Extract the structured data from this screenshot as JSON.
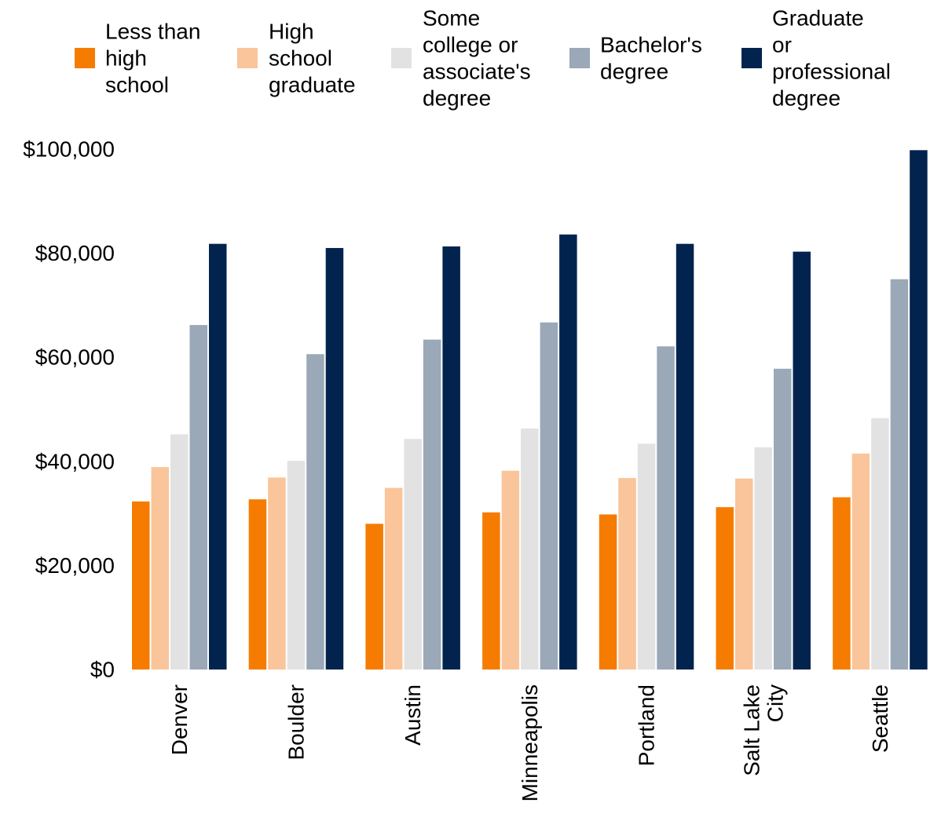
{
  "chart_data": {
    "type": "bar",
    "categories": [
      "Denver",
      "Boulder",
      "Austin",
      "Minneapolis",
      "Portland",
      "Salt Lake City",
      "Seattle"
    ],
    "category_label_lines": [
      [
        "Denver"
      ],
      [
        "Boulder"
      ],
      [
        "Austin"
      ],
      [
        "Minneapolis"
      ],
      [
        "Portland"
      ],
      [
        "Salt Lake",
        "City"
      ],
      [
        "Seattle"
      ]
    ],
    "series": [
      {
        "name": "Less than high school",
        "label_lines": [
          "Less than",
          "high",
          "school"
        ],
        "color": "#f57c00",
        "values": [
          32300,
          32700,
          28000,
          30200,
          29800,
          31200,
          33100
        ]
      },
      {
        "name": "High school graduate",
        "label_lines": [
          "High",
          "school",
          "graduate"
        ],
        "color": "#fac59a",
        "values": [
          38900,
          36900,
          34900,
          38200,
          36800,
          36700,
          41500
        ]
      },
      {
        "name": "Some college or associate's degree",
        "label_lines": [
          "Some",
          "college or",
          "associate's",
          "degree"
        ],
        "color": "#e2e2e2",
        "values": [
          45200,
          40100,
          44300,
          46300,
          43400,
          42700,
          48300
        ]
      },
      {
        "name": "Bachelor's degree",
        "label_lines": [
          "Bachelor's",
          "degree"
        ],
        "color": "#9aa8b8",
        "values": [
          66200,
          60600,
          63400,
          66700,
          62100,
          57800,
          75000
        ]
      },
      {
        "name": "Graduate or professional degree",
        "label_lines": [
          "Graduate",
          "or",
          "professional",
          "degree"
        ],
        "color": "#03234f",
        "values": [
          81800,
          81000,
          81300,
          83600,
          81800,
          80300,
          99800
        ]
      }
    ],
    "yticks": [
      0,
      20000,
      40000,
      60000,
      80000,
      100000
    ],
    "ytick_labels": [
      "$0",
      "$20,000",
      "$40,000",
      "$60,000",
      "$80,000",
      "$100,000"
    ],
    "ylim": [
      0,
      100000
    ],
    "legend_position": "top",
    "grid": false,
    "title": "",
    "xlabel": "",
    "ylabel": ""
  }
}
